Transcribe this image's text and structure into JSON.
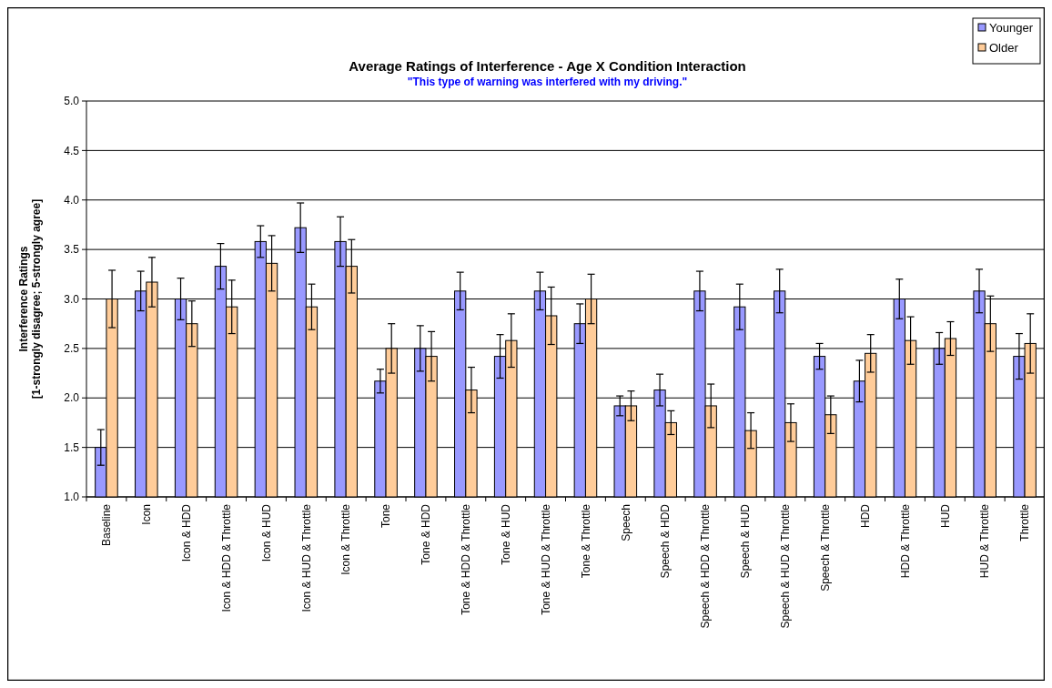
{
  "chart_data": {
    "type": "bar",
    "title": "Average Ratings of Interference - Age X Condition Interaction",
    "subtitle": "\"This type of warning was interfered with my driving.\"",
    "ylabel": "Interference Ratings\n[1-strongly disagree; 5-strongly agree]",
    "categories": [
      "Baseline",
      "Icon",
      "Icon & HDD",
      "Icon & HDD & Throttle",
      "Icon & HUD",
      "Icon & HUD & Throttle",
      "Icon & Throttle",
      "Tone",
      "Tone & HDD",
      "Tone & HDD & Throttle",
      "Tone & HUD",
      "Tone & HUD & Throttle",
      "Tone & Throttle",
      "Speech",
      "Speech & HDD",
      "Speech & HDD & Throttle",
      "Speech & HUD",
      "Speech & HUD & Throttle",
      "Speech & Throttle",
      "HDD",
      "HDD & Throttle",
      "HUD",
      "HUD & Throttle",
      "Throttle"
    ],
    "series": [
      {
        "name": "Younger",
        "color": "#9999ff",
        "values": [
          1.5,
          3.08,
          3.0,
          3.33,
          3.58,
          3.72,
          3.58,
          2.17,
          2.5,
          3.08,
          2.42,
          3.08,
          2.75,
          1.92,
          2.08,
          3.08,
          2.92,
          3.08,
          2.42,
          2.17,
          3.0,
          2.5,
          3.08,
          2.42
        ],
        "errors": [
          0.18,
          0.2,
          0.21,
          0.23,
          0.16,
          0.25,
          0.25,
          0.12,
          0.23,
          0.19,
          0.22,
          0.19,
          0.2,
          0.1,
          0.16,
          0.2,
          0.23,
          0.22,
          0.13,
          0.21,
          0.2,
          0.16,
          0.22,
          0.23
        ]
      },
      {
        "name": "Older",
        "color": "#ffcc99",
        "values": [
          3.0,
          3.17,
          2.75,
          2.92,
          3.36,
          2.92,
          3.33,
          2.5,
          2.42,
          2.08,
          2.58,
          2.83,
          3.0,
          1.92,
          1.75,
          1.92,
          1.67,
          1.75,
          1.83,
          2.45,
          2.58,
          2.6,
          2.75,
          2.55
        ],
        "errors": [
          0.29,
          0.25,
          0.23,
          0.27,
          0.28,
          0.23,
          0.27,
          0.25,
          0.25,
          0.23,
          0.27,
          0.29,
          0.25,
          0.15,
          0.12,
          0.22,
          0.18,
          0.19,
          0.19,
          0.19,
          0.24,
          0.17,
          0.28,
          0.3
        ]
      }
    ],
    "ylim": [
      1.0,
      5.0
    ],
    "yticks": [
      {
        "value": 1,
        "label": "1.0"
      },
      {
        "value": 1.5,
        "label": "1.5"
      },
      {
        "value": 2,
        "label": "2.0"
      },
      {
        "value": 2.5,
        "label": "2.5"
      },
      {
        "value": 3,
        "label": "3.0"
      },
      {
        "value": 3.5,
        "label": "3.5"
      },
      {
        "value": 4,
        "label": "4.0"
      },
      {
        "value": 4.5,
        "label": "4.5"
      },
      {
        "value": 5,
        "label": "5.0"
      }
    ],
    "grid": "y",
    "legend": "top right"
  }
}
